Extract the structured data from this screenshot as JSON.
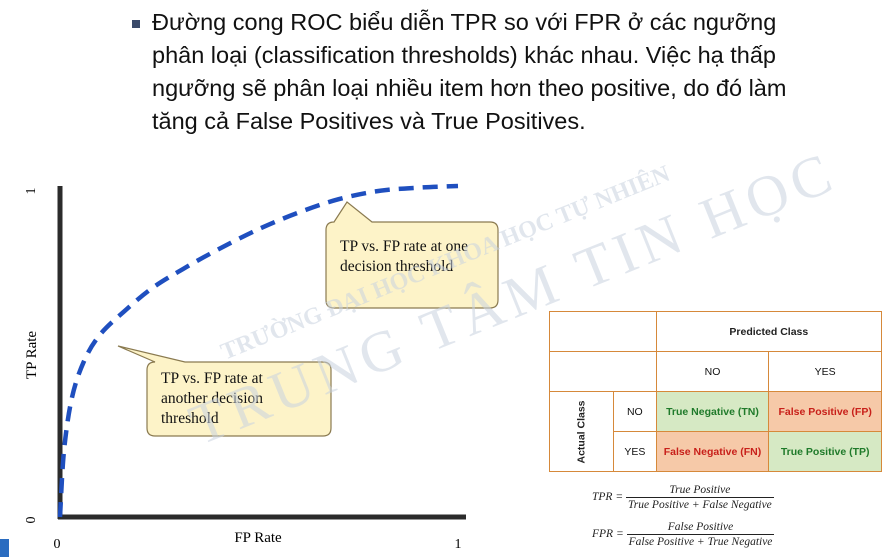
{
  "bullet": {
    "text": "Đường cong ROC biểu diễn TPR so với FPR ở các ngưỡng phân loại (classification thresholds) khác nhau. Việc hạ thấp ngưỡng sẽ phân loại nhiều item hơn theo positive, do đó làm tăng cả False Positives và True Positives."
  },
  "watermark": {
    "line1": "TRƯỜNG ĐẠI HỌC KHOA HỌC TỰ NHIÊN",
    "line2": "TRUNG TÂM TIN HỌC",
    "color": "#c9d3e0"
  },
  "chart_data": {
    "type": "line",
    "xlabel": "FP Rate",
    "ylabel": "TP Rate",
    "x_ticks": [
      "0",
      "1"
    ],
    "y_ticks": [
      "0",
      "1"
    ],
    "xlim": [
      0,
      1
    ],
    "ylim": [
      0,
      1
    ],
    "line_style": "dashed",
    "line_color": "#1f4fbf",
    "series": [
      {
        "x": [
          0.0,
          0.01,
          0.03,
          0.06,
          0.1,
          0.16,
          0.23,
          0.31,
          0.4,
          0.5,
          0.6,
          0.7,
          0.8,
          0.9,
          1.0
        ],
        "y": [
          0.0,
          0.2,
          0.36,
          0.47,
          0.55,
          0.62,
          0.69,
          0.75,
          0.81,
          0.87,
          0.92,
          0.96,
          0.985,
          0.995,
          1.0
        ]
      }
    ],
    "annotations": [
      {
        "text": "TP vs. FP rate at one decision threshold",
        "x": 0.65,
        "y": 0.96
      },
      {
        "text": "TP vs. FP rate at another decision threshold",
        "x": 0.12,
        "y": 0.5
      }
    ],
    "callout_fill": "#fdf3c8",
    "callout_stroke": "#8a7a50"
  },
  "confusion_matrix": {
    "predicted_header": "Predicted Class",
    "actual_header": "Actual Class",
    "col_no": "NO",
    "col_yes": "YES",
    "row_no": "NO",
    "row_yes": "YES",
    "tn": "True Negative (TN)",
    "fp": "False Positive (FP)",
    "fn": "False Negative (FN)",
    "tp": "True Positive (TP)"
  },
  "formulas": {
    "tpr_label": "TPR =",
    "tpr_num": "True Positive",
    "tpr_den": "True Positive + False Negative",
    "fpr_label": "FPR =",
    "fpr_num": "False Positive",
    "fpr_den": "False Positive + True Negative"
  }
}
